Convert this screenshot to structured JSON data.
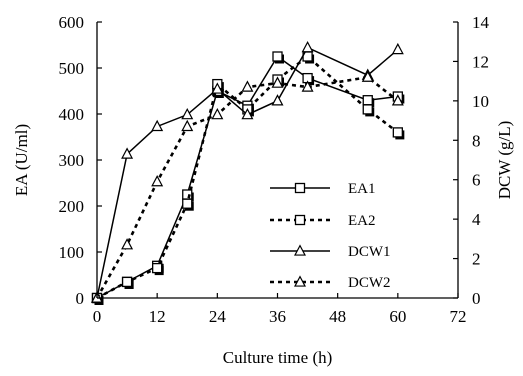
{
  "chart_data": {
    "type": "line",
    "title": "",
    "xlabel": "Culture time (h)",
    "ylabel": "EA (U/ml)",
    "y2label": "DCW (g/L)",
    "xlim": [
      0,
      72
    ],
    "ylim": [
      0,
      600
    ],
    "y2lim": [
      0,
      14
    ],
    "xticks": [
      "0",
      "12",
      "24",
      "36",
      "48",
      "60",
      "72"
    ],
    "yticks": [
      "0",
      "100",
      "200",
      "300",
      "400",
      "500",
      "600"
    ],
    "y2ticks": [
      "0",
      "2",
      "4",
      "6",
      "8",
      "10",
      "12",
      "14"
    ],
    "grid": false,
    "legend_position": "center-right",
    "series": [
      {
        "name": "EA1",
        "axis": "left",
        "line_style": "solid",
        "marker": "square",
        "x": [
          0,
          6,
          12,
          18,
          24,
          30,
          36,
          42,
          54,
          60
        ],
        "y": [
          0,
          35,
          70,
          225,
          450,
          418,
          525,
          478,
          430,
          438
        ]
      },
      {
        "name": "EA2",
        "axis": "left",
        "line_style": "dashed",
        "marker": "square",
        "x": [
          0,
          6,
          12,
          18,
          24,
          30,
          36,
          42,
          54,
          60
        ],
        "y": [
          0,
          35,
          65,
          205,
          465,
          410,
          475,
          525,
          410,
          360
        ]
      },
      {
        "name": "DCW1",
        "axis": "right",
        "line_style": "solid",
        "marker": "triangle",
        "x": [
          0,
          6,
          12,
          18,
          24,
          30,
          36,
          42,
          54,
          60
        ],
        "y": [
          0,
          7.3,
          8.7,
          9.3,
          10.6,
          9.3,
          10.0,
          12.7,
          11.3,
          12.6
        ]
      },
      {
        "name": "DCW2",
        "axis": "right",
        "line_style": "dashed",
        "marker": "triangle",
        "x": [
          0,
          6,
          12,
          18,
          24,
          30,
          36,
          42,
          54,
          60
        ],
        "y": [
          0,
          2.7,
          5.9,
          8.7,
          9.3,
          10.7,
          10.9,
          10.7,
          11.2,
          10.0
        ]
      }
    ]
  }
}
